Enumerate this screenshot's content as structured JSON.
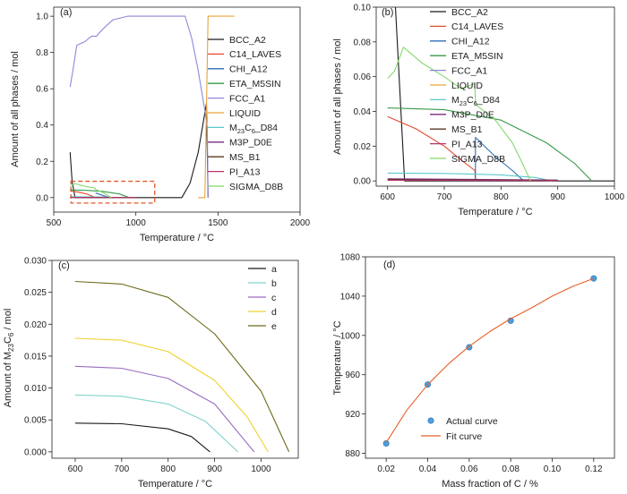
{
  "chart_data": [
    {
      "panel": "(a)",
      "type": "line",
      "xlabel": "Temperature / ",
      "xunit": "°C",
      "ylabel": "Amount of all phases / mol",
      "xlim": [
        500,
        2000
      ],
      "ylim": [
        -0.08,
        1.05
      ],
      "xticks": [
        "500",
        "1000",
        "1500",
        "2000"
      ],
      "yticks": [
        "0.0",
        "0.2",
        "0.4",
        "0.6",
        "0.8",
        "1.0"
      ],
      "legend_position": "right",
      "highlight_box": {
        "x": [
          605,
          1115
        ],
        "y": [
          -0.03,
          0.09
        ],
        "color": "#e05a2b",
        "style": "dashed"
      },
      "series": [
        {
          "name": "BCC_A2",
          "color": "#1a1a1a",
          "points": [
            [
              600,
              0.25
            ],
            [
              612,
              0.09
            ],
            [
              630,
              0.0
            ],
            [
              1280,
              0.0
            ],
            [
              1330,
              0.08
            ],
            [
              1380,
              0.25
            ],
            [
              1430,
              0.52
            ],
            [
              1440,
              0.0
            ]
          ]
        },
        {
          "name": "C14_LAVES",
          "color": "#e24b2f",
          "points": [
            [
              600,
              0.037
            ],
            [
              650,
              0.03
            ],
            [
              700,
              0.02
            ],
            [
              755,
              0.0
            ]
          ]
        },
        {
          "name": "CHI_A12",
          "color": "#2f6db5",
          "points": [
            [
              755,
              0.025
            ],
            [
              800,
              0.012
            ],
            [
              840,
              0.0
            ]
          ]
        },
        {
          "name": "ETA_M5SIN",
          "color": "#3a9a4a",
          "points": [
            [
              600,
              0.042
            ],
            [
              700,
              0.04
            ],
            [
              800,
              0.034
            ],
            [
              900,
              0.02
            ],
            [
              960,
              0.0
            ]
          ]
        },
        {
          "name": "FCC_A1",
          "color": "#8f88d8",
          "points": [
            [
              600,
              0.61
            ],
            [
              620,
              0.72
            ],
            [
              640,
              0.84
            ],
            [
              690,
              0.86
            ],
            [
              730,
              0.89
            ],
            [
              760,
              0.89
            ],
            [
              800,
              0.93
            ],
            [
              860,
              0.98
            ],
            [
              950,
              1.0
            ],
            [
              1300,
              1.0
            ],
            [
              1340,
              0.88
            ],
            [
              1380,
              0.7
            ],
            [
              1420,
              0.48
            ],
            [
              1435,
              0.39
            ],
            [
              1440,
              0.0
            ]
          ]
        },
        {
          "name": "LIQUID",
          "color": "#e8a33a",
          "points": [
            [
              1380,
              0.0
            ],
            [
              1420,
              0.0
            ],
            [
              1440,
              1.0
            ],
            [
              1600,
              1.0
            ]
          ]
        },
        {
          "name": "M23C6_D84",
          "color": "#5bc8cc",
          "points": [
            [
              600,
              0.0045
            ],
            [
              800,
              0.0038
            ],
            [
              890,
              0.0
            ]
          ]
        },
        {
          "name": "M3P_D0E",
          "color": "#7b2a85",
          "points": [
            [
              600,
              0.001
            ],
            [
              1000,
              0.001
            ]
          ]
        },
        {
          "name": "MS_B1",
          "color": "#5a3a22",
          "points": [
            [
              600,
              0.001
            ],
            [
              1000,
              0.0008
            ]
          ]
        },
        {
          "name": "PI_A13",
          "color": "#b8336a",
          "points": [
            [
              600,
              0.0005
            ],
            [
              1000,
              0.0004
            ]
          ]
        },
        {
          "name": "SIGMA_D8B",
          "color": "#85d86c",
          "points": [
            [
              600,
              0.059
            ],
            [
              630,
              0.077
            ],
            [
              700,
              0.06
            ],
            [
              750,
              0.053
            ],
            [
              755,
              0.045
            ],
            [
              800,
              0.028
            ],
            [
              850,
              0.0
            ]
          ]
        }
      ]
    },
    {
      "panel": "(b)",
      "type": "line",
      "xlabel": "Temperature / ",
      "xunit": "°C",
      "ylabel": "Amount of all phases / mol",
      "xlim": [
        580,
        1000
      ],
      "ylim": [
        -0.003,
        0.1
      ],
      "xticks": [
        "600",
        "700",
        "800",
        "900",
        "1000"
      ],
      "yticks": [
        "0.00",
        "0.02",
        "0.04",
        "0.06",
        "0.08",
        "0.10"
      ],
      "legend_position": "right",
      "series": [
        {
          "name": "BCC_A2",
          "color": "#1a1a1a",
          "points": [
            [
              614,
              0.1
            ],
            [
              622,
              0.05
            ],
            [
              630,
              0.0
            ],
            [
              1000,
              0.0
            ]
          ]
        },
        {
          "name": "C14_LAVES",
          "color": "#e24b2f",
          "points": [
            [
              600,
              0.037
            ],
            [
              650,
              0.03
            ],
            [
              700,
              0.02
            ],
            [
              730,
              0.012
            ],
            [
              754,
              0.006
            ],
            [
              755,
              0.0
            ]
          ]
        },
        {
          "name": "CHI_A12",
          "color": "#2f6db5",
          "points": [
            [
              755,
              0.0
            ],
            [
              755,
              0.025
            ],
            [
              790,
              0.014
            ],
            [
              820,
              0.006
            ],
            [
              840,
              0.0
            ]
          ]
        },
        {
          "name": "ETA_M5SIN",
          "color": "#3a9a4a",
          "points": [
            [
              600,
              0.042
            ],
            [
              700,
              0.041
            ],
            [
              800,
              0.035
            ],
            [
              880,
              0.022
            ],
            [
              930,
              0.01
            ],
            [
              960,
              0.0
            ]
          ]
        },
        {
          "name": "FCC_A1",
          "color": "#8f88d8",
          "points": []
        },
        {
          "name": "LIQUID",
          "color": "#e8a33a",
          "points": []
        },
        {
          "name": "M23C6_D84",
          "color": "#5bc8cc",
          "points": [
            [
              600,
              0.0045
            ],
            [
              700,
              0.0043
            ],
            [
              800,
              0.0035
            ],
            [
              860,
              0.002
            ],
            [
              890,
              0.0
            ]
          ]
        },
        {
          "name": "M3P_D0E",
          "color": "#7b2a85",
          "points": [
            [
              600,
              0.0012
            ],
            [
              900,
              0.0005
            ]
          ]
        },
        {
          "name": "MS_B1",
          "color": "#5a3a22",
          "points": [
            [
              600,
              0.0008
            ],
            [
              900,
              0.0003
            ]
          ]
        },
        {
          "name": "PI_A13",
          "color": "#b8336a",
          "points": [
            [
              600,
              0.0004
            ],
            [
              900,
              0.0002
            ]
          ]
        },
        {
          "name": "SIGMA_D8B",
          "color": "#85d86c",
          "points": [
            [
              600,
              0.059
            ],
            [
              612,
              0.063
            ],
            [
              628,
              0.077
            ],
            [
              660,
              0.068
            ],
            [
              700,
              0.06
            ],
            [
              730,
              0.053
            ],
            [
              754,
              0.056
            ],
            [
              755,
              0.044
            ],
            [
              790,
              0.035
            ],
            [
              820,
              0.022
            ],
            [
              835,
              0.012
            ],
            [
              852,
              0.0
            ]
          ]
        }
      ]
    },
    {
      "panel": "(c)",
      "type": "line",
      "xlabel": "Temperature / ",
      "xunit": "°C",
      "ylabel": "Amount of M",
      "ylabel_sub1": "23",
      "ylabel_mid": "C",
      "ylabel_sub2": "6",
      "ylabel_tail": " / mol",
      "xlim": [
        550,
        1080
      ],
      "ylim": [
        -0.001,
        0.03
      ],
      "xticks": [
        "600",
        "700",
        "800",
        "900",
        "1000"
      ],
      "yticks": [
        "0.000",
        "0.005",
        "0.010",
        "0.015",
        "0.020",
        "0.025",
        "0.030"
      ],
      "legend_position": "top-right",
      "series": [
        {
          "name": "a",
          "color": "#1a1a1a",
          "points": [
            [
              600,
              0.0045
            ],
            [
              700,
              0.0044
            ],
            [
              800,
              0.0036
            ],
            [
              850,
              0.0024
            ],
            [
              890,
              0.0
            ]
          ]
        },
        {
          "name": "b",
          "color": "#7fd4cc",
          "points": [
            [
              600,
              0.0089
            ],
            [
              700,
              0.0087
            ],
            [
              800,
              0.0075
            ],
            [
              880,
              0.0048
            ],
            [
              950,
              0.0
            ]
          ]
        },
        {
          "name": "c",
          "color": "#9a6bc0",
          "points": [
            [
              600,
              0.0134
            ],
            [
              700,
              0.0131
            ],
            [
              800,
              0.0115
            ],
            [
              900,
              0.0075
            ],
            [
              985,
              0.0
            ]
          ]
        },
        {
          "name": "d",
          "color": "#f0d030",
          "points": [
            [
              600,
              0.0178
            ],
            [
              700,
              0.0175
            ],
            [
              800,
              0.0157
            ],
            [
              900,
              0.0112
            ],
            [
              970,
              0.0055
            ],
            [
              1015,
              0.0
            ]
          ]
        },
        {
          "name": "e",
          "color": "#6e6a1a",
          "points": [
            [
              600,
              0.0267
            ],
            [
              700,
              0.0263
            ],
            [
              800,
              0.0242
            ],
            [
              900,
              0.0185
            ],
            [
              1000,
              0.0095
            ],
            [
              1060,
              0.0
            ]
          ]
        }
      ]
    },
    {
      "panel": "(d)",
      "type": "scatter",
      "xlabel": "Mass fraction of C / %",
      "ylabel": "Temperature / ",
      "yunit": "°C",
      "xlim": [
        0.01,
        0.13
      ],
      "ylim": [
        875,
        1080
      ],
      "xticks": [
        "0.02",
        "0.04",
        "0.06",
        "0.08",
        "0.10",
        "0.12"
      ],
      "yticks": [
        "880",
        "920",
        "960",
        "1000",
        "1040",
        "1080"
      ],
      "legend_position": "bottom-right",
      "series": [
        {
          "name": "Actual curve",
          "kind": "points",
          "color": "#4a9fe0",
          "points": [
            [
              0.02,
              890
            ],
            [
              0.04,
              950
            ],
            [
              0.06,
              988
            ],
            [
              0.08,
              1015
            ],
            [
              0.12,
              1058
            ]
          ]
        },
        {
          "name": "Fit curve",
          "kind": "line",
          "color": "#e8602a",
          "points": [
            [
              0.02,
              891
            ],
            [
              0.03,
              924
            ],
            [
              0.04,
              950
            ],
            [
              0.05,
              971
            ],
            [
              0.06,
              989
            ],
            [
              0.07,
              1004
            ],
            [
              0.08,
              1017
            ],
            [
              0.09,
              1028
            ],
            [
              0.1,
              1040
            ],
            [
              0.11,
              1050
            ],
            [
              0.12,
              1058
            ]
          ]
        }
      ]
    }
  ]
}
